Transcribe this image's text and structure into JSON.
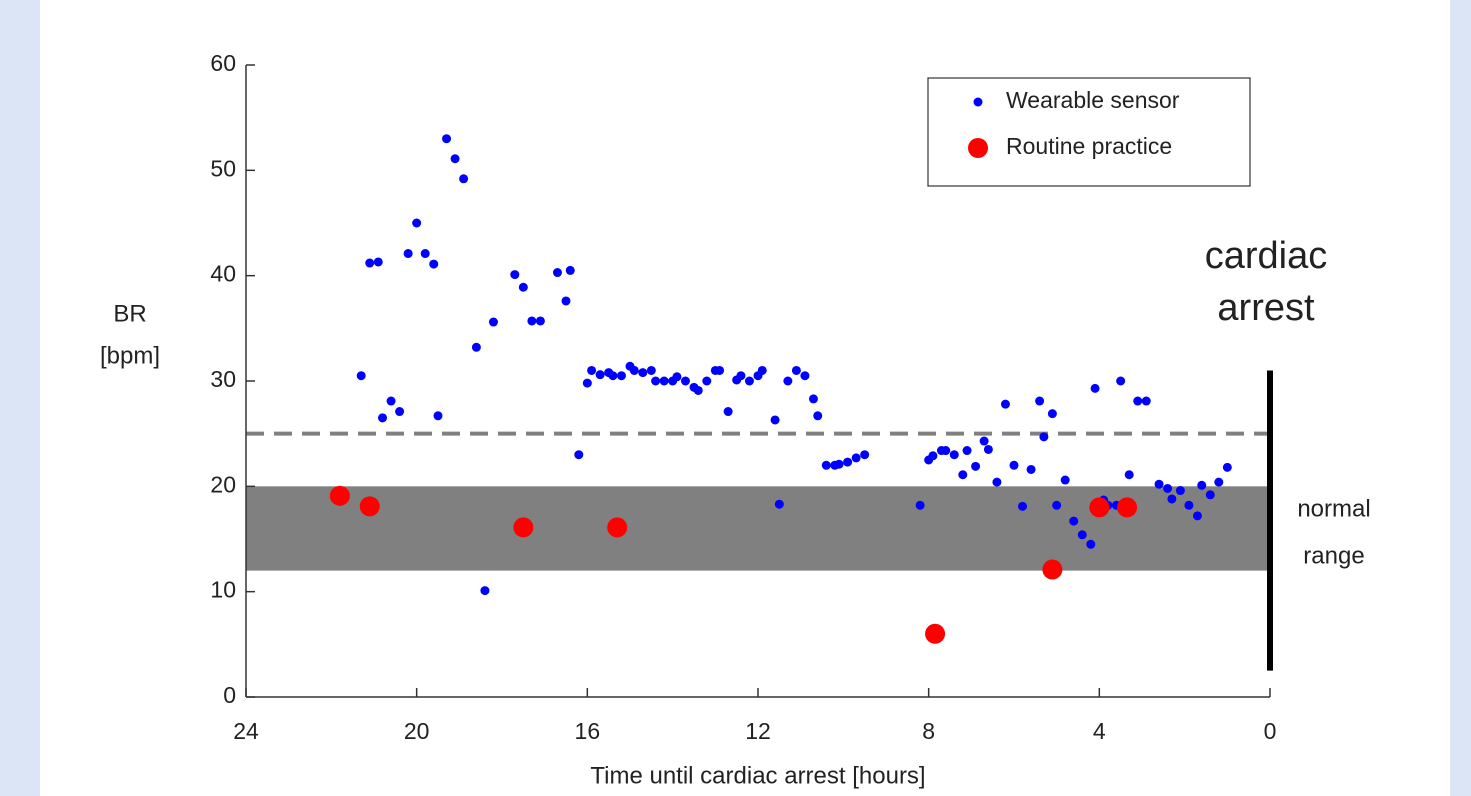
{
  "chart_data": {
    "type": "scatter",
    "xlabel": "Time until cardiac arrest [hours]",
    "ylabel": [
      "BR",
      "[bpm]"
    ],
    "xlim": [
      24,
      0
    ],
    "xticks": [
      24,
      20,
      16,
      12,
      8,
      4,
      0
    ],
    "ylim": [
      0,
      60
    ],
    "yticks": [
      0,
      10,
      20,
      30,
      40,
      50,
      60
    ],
    "legend": "upper right",
    "normal_band": {
      "y": [
        12,
        20
      ],
      "color": "#808080",
      "label": [
        "normal",
        "range"
      ]
    },
    "threshold": {
      "y": 25,
      "color": "#808080"
    },
    "arrest_line": {
      "x": 0,
      "y": [
        2.5,
        31
      ],
      "label": [
        "cardiac",
        "arrest"
      ]
    },
    "series": [
      {
        "name": "Wearable sensor",
        "color": "#0000ff",
        "size": 4.5,
        "x": [
          21.3,
          21.1,
          20.9,
          20.8,
          20.6,
          20.4,
          20.2,
          20.0,
          19.8,
          19.6,
          19.5,
          19.3,
          19.1,
          18.9,
          18.6,
          18.4,
          18.2,
          17.7,
          17.5,
          17.3,
          17.1,
          16.7,
          16.5,
          16.4,
          16.2,
          16.0,
          15.9,
          15.7,
          15.5,
          15.4,
          15.2,
          15.0,
          14.9,
          14.7,
          14.5,
          14.4,
          14.2,
          14.0,
          13.9,
          13.7,
          13.5,
          13.4,
          13.2,
          13.0,
          12.9,
          12.7,
          12.5,
          12.4,
          12.2,
          12.0,
          11.9,
          11.6,
          11.5,
          11.3,
          11.1,
          10.9,
          10.7,
          10.6,
          10.4,
          10.2,
          10.1,
          9.9,
          9.7,
          9.5,
          8.2,
          8.0,
          7.9,
          7.7,
          7.6,
          7.4,
          7.2,
          7.1,
          6.9,
          6.7,
          6.6,
          6.4,
          6.2,
          6.0,
          5.8,
          5.6,
          5.4,
          5.3,
          5.1,
          5.0,
          4.8,
          4.6,
          4.4,
          4.2,
          4.1,
          3.9,
          3.8,
          3.6,
          3.5,
          3.3,
          3.1,
          2.9,
          2.6,
          2.4,
          2.3,
          2.1,
          1.9,
          1.7,
          1.6,
          1.4,
          1.2,
          1.0
        ],
        "values": [
          30.5,
          41.2,
          41.3,
          26.5,
          28.1,
          27.1,
          42.1,
          45.0,
          42.1,
          41.1,
          26.7,
          53.0,
          51.1,
          49.2,
          33.2,
          10.1,
          35.6,
          40.1,
          38.9,
          35.7,
          35.7,
          40.3,
          37.6,
          40.5,
          23.0,
          29.8,
          31.0,
          30.6,
          30.8,
          30.5,
          30.5,
          31.4,
          31.0,
          30.8,
          31.0,
          30.0,
          30.0,
          30.0,
          30.4,
          30.0,
          29.4,
          29.1,
          30.0,
          31.0,
          31.0,
          27.1,
          30.1,
          30.5,
          30.0,
          30.5,
          31.0,
          26.3,
          18.3,
          30.0,
          31.0,
          30.5,
          28.3,
          26.7,
          22.0,
          22.0,
          22.1,
          22.3,
          22.7,
          23.0,
          18.2,
          22.5,
          22.9,
          23.4,
          23.4,
          23.0,
          21.1,
          23.4,
          21.9,
          24.3,
          23.5,
          20.4,
          27.8,
          22.0,
          18.1,
          21.6,
          28.1,
          24.7,
          26.9,
          18.2,
          20.6,
          16.7,
          15.4,
          14.5,
          29.3,
          18.7,
          18.2,
          18.2,
          30.0,
          21.1,
          28.1,
          28.1,
          20.2,
          19.8,
          18.8,
          19.6,
          18.2,
          17.2,
          20.1,
          19.2,
          20.4,
          21.8
        ]
      },
      {
        "name": "Routine practice",
        "color": "#ff0000",
        "size": 10,
        "x": [
          21.8,
          21.1,
          17.5,
          15.3,
          7.85,
          5.1,
          4.0,
          3.35
        ],
        "values": [
          19.1,
          18.1,
          16.1,
          16.1,
          6.0,
          12.1,
          18.0,
          18.0
        ]
      }
    ]
  }
}
